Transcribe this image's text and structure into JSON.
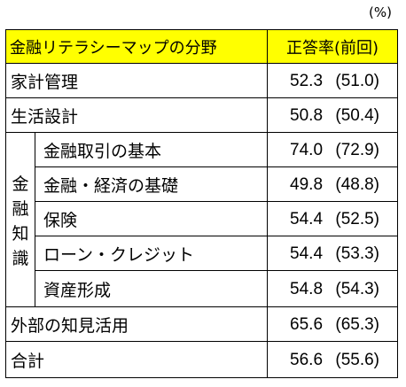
{
  "unit": "(%)",
  "header": {
    "category": "金融リテラシーマップの分野",
    "rate": "正答率(前回)"
  },
  "group_label": [
    "金",
    "融",
    "知",
    "識"
  ],
  "rows": [
    {
      "label": "家計管理",
      "rate": "52.3",
      "prev": "(51.0)"
    },
    {
      "label": "生活設計",
      "rate": "50.8",
      "prev": "(50.4)"
    },
    {
      "label": "金融取引の基本",
      "rate": "74.0",
      "prev": "(72.9)"
    },
    {
      "label": "金融・経済の基礎",
      "rate": "49.8",
      "prev": "(48.8)"
    },
    {
      "label": "保険",
      "rate": "54.4",
      "prev": "(52.5)"
    },
    {
      "label": "ローン・クレジット",
      "rate": "54.4",
      "prev": "(53.3)"
    },
    {
      "label": "資産形成",
      "rate": "54.8",
      "prev": "(54.3)"
    },
    {
      "label": "外部の知見活用",
      "rate": "65.6",
      "prev": "(65.3)"
    },
    {
      "label": "合計",
      "rate": "56.6",
      "prev": "(55.6)"
    }
  ],
  "colors": {
    "header_bg": "#ffff00",
    "border": "#000000"
  }
}
